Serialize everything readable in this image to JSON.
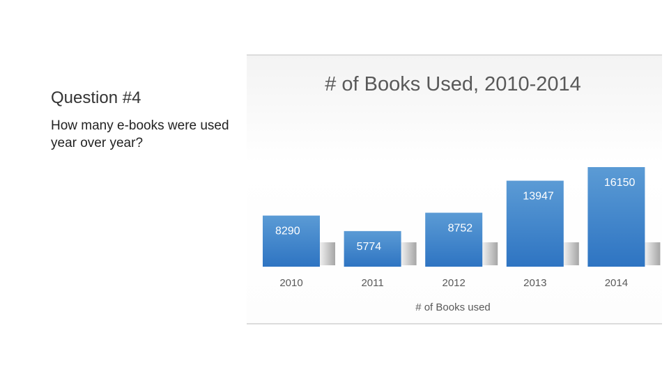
{
  "slide": {
    "question_title": "Question #4",
    "question_text": "How many e-books were used year over year?"
  },
  "chart_data": {
    "type": "bar",
    "title": "# of Books Used, 2010-2014",
    "categories": [
      "2010",
      "2011",
      "2012",
      "2013",
      "2014"
    ],
    "series": [
      {
        "name": "# of Books used",
        "values": [
          8290,
          5774,
          8752,
          13947,
          16150
        ]
      }
    ],
    "data_labels": [
      "8290",
      "5774",
      "8752",
      "13947",
      "16150"
    ],
    "xlabel": "",
    "ylabel": "",
    "ylim": [
      0,
      16150
    ],
    "grid": false,
    "legend": "bottom",
    "colors": {
      "bar_top": "#5b9bd5",
      "bar_bottom": "#2e74c2",
      "label": "#ffffff",
      "text": "#595959"
    }
  }
}
